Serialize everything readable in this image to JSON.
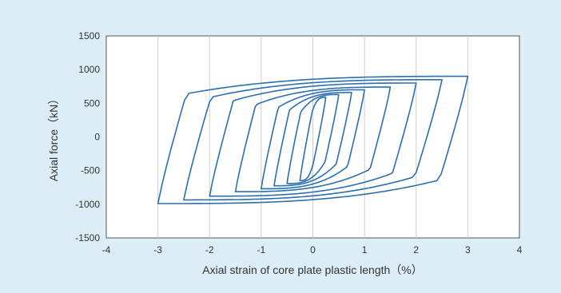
{
  "chart_data": {
    "type": "line",
    "xlabel": "Axial strain of core plate plastic length（%）",
    "ylabel": "Axial force（kN）",
    "xlim": [
      -4,
      4
    ],
    "ylim": [
      -1500,
      1500
    ],
    "xticks": [
      "-4",
      "-3",
      "-2",
      "-1",
      "0",
      "1",
      "2",
      "3",
      "4"
    ],
    "yticks": [
      "1500",
      "1000",
      "500",
      "0",
      "-500",
      "-1000",
      "-1500"
    ],
    "grid": "vertical",
    "line_color": "#2a6fb0",
    "loops": [
      {
        "amplitude": 0.25,
        "peak_force": 590
      },
      {
        "amplitude": 0.5,
        "peak_force": 630
      },
      {
        "amplitude": 0.75,
        "peak_force": 660
      },
      {
        "amplitude": 1.0,
        "peak_force": 700
      },
      {
        "amplitude": 1.5,
        "peak_force": 740
      },
      {
        "amplitude": 2.0,
        "peak_force": 800
      },
      {
        "amplitude": 2.5,
        "peak_force": 850
      },
      {
        "amplitude": 3.0,
        "peak_force": 900
      }
    ]
  }
}
